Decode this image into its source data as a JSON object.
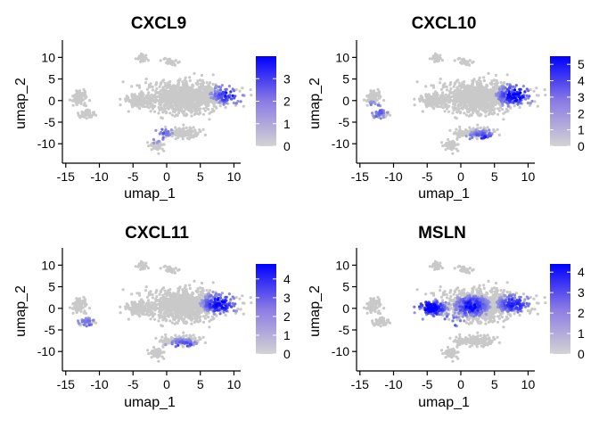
{
  "chart_data": [
    {
      "type": "scatter",
      "title": "CXCL9",
      "xlabel": "umap_1",
      "ylabel": "umap_2",
      "xlim": [
        -15.5,
        11
      ],
      "ylim": [
        -14.5,
        14
      ],
      "xticks": [
        "-15",
        "-10",
        "-5",
        "0",
        "5",
        "10"
      ],
      "xtick_values": [
        -15,
        -10,
        -5,
        0,
        5,
        10
      ],
      "yticks": [
        "10",
        "5",
        "0",
        "-5",
        "-10"
      ],
      "ytick_values": [
        10,
        5,
        0,
        -5,
        -10
      ],
      "legend": {
        "position": "right",
        "min": 0,
        "max": 4,
        "ticks": [
          "3",
          "2",
          "1",
          "0"
        ],
        "tick_values": [
          3,
          2,
          1,
          0
        ],
        "colors": [
          "#d3d3d3",
          "#0000ff"
        ]
      },
      "expression_hotspots": [
        {
          "x": 9.2,
          "y": 1.3,
          "intensity": 0.7
        },
        {
          "x": -1.5,
          "y": -7.5,
          "intensity": 0.5
        }
      ]
    },
    {
      "type": "scatter",
      "title": "CXCL10",
      "xlabel": "umap_1",
      "ylabel": "umap_2",
      "xlim": [
        -15.5,
        11
      ],
      "ylim": [
        -14.5,
        14
      ],
      "xticks": [
        "-15",
        "-10",
        "-5",
        "0",
        "5",
        "10"
      ],
      "xtick_values": [
        -15,
        -10,
        -5,
        0,
        5,
        10
      ],
      "yticks": [
        "10",
        "5",
        "0",
        "-5",
        "-10"
      ],
      "ytick_values": [
        10,
        5,
        0,
        -5,
        -10
      ],
      "legend": {
        "position": "right",
        "min": 0,
        "max": 5.5,
        "ticks": [
          "5",
          "4",
          "3",
          "2",
          "1",
          "0"
        ],
        "tick_values": [
          5,
          4,
          3,
          2,
          1,
          0
        ],
        "colors": [
          "#d3d3d3",
          "#0000ff"
        ]
      },
      "expression_hotspots": [
        {
          "x": 8.2,
          "y": 1.2,
          "intensity": 0.9
        },
        {
          "x": 3.5,
          "y": -9.5,
          "intensity": 0.8
        },
        {
          "x": -12.8,
          "y": -2.5,
          "intensity": 0.5
        }
      ]
    },
    {
      "type": "scatter",
      "title": "CXCL11",
      "xlabel": "umap_1",
      "ylabel": "umap_2",
      "xlim": [
        -15.5,
        11
      ],
      "ylim": [
        -14.5,
        14
      ],
      "xticks": [
        "-15",
        "-10",
        "-5",
        "0",
        "5",
        "10"
      ],
      "xtick_values": [
        -15,
        -10,
        -5,
        0,
        5,
        10
      ],
      "yticks": [
        "10",
        "5",
        "0",
        "-5",
        "-10"
      ],
      "ytick_values": [
        10,
        5,
        0,
        -5,
        -10
      ],
      "legend": {
        "position": "right",
        "min": 0,
        "max": 4.8,
        "ticks": [
          "4",
          "3",
          "2",
          "1",
          "0"
        ],
        "tick_values": [
          4,
          3,
          2,
          1,
          0
        ],
        "colors": [
          "#d3d3d3",
          "#0000ff"
        ]
      },
      "expression_hotspots": [
        {
          "x": 8.0,
          "y": 1.0,
          "intensity": 0.85
        },
        {
          "x": 2.5,
          "y": -9.8,
          "intensity": 0.8
        },
        {
          "x": -11.5,
          "y": -3.8,
          "intensity": 0.4
        }
      ]
    },
    {
      "type": "scatter",
      "title": "MSLN",
      "xlabel": "umap_1",
      "ylabel": "umap_2",
      "xlim": [
        -15.5,
        11
      ],
      "ylim": [
        -14.5,
        14
      ],
      "xticks": [
        "-15",
        "-10",
        "-5",
        "0",
        "5",
        "10"
      ],
      "xtick_values": [
        -15,
        -10,
        -5,
        0,
        5,
        10
      ],
      "yticks": [
        "10",
        "5",
        "0",
        "-5",
        "-10"
      ],
      "ytick_values": [
        10,
        5,
        0,
        -5,
        -10
      ],
      "legend": {
        "position": "right",
        "min": 0,
        "max": 4.4,
        "ticks": [
          "4",
          "3",
          "2",
          "1",
          "0"
        ],
        "tick_values": [
          4,
          3,
          2,
          1,
          0
        ],
        "colors": [
          "#d3d3d3",
          "#0000ff"
        ]
      },
      "expression_hotspots": [
        {
          "x": 1.5,
          "y": 0.5,
          "intensity": 0.75
        },
        {
          "x": -4.5,
          "y": 0.0,
          "intensity": 0.85
        },
        {
          "x": 8.0,
          "y": 1.0,
          "intensity": 0.7
        },
        {
          "x": -2.0,
          "y": -3.5,
          "intensity": 0.6
        }
      ]
    }
  ],
  "clusters": [
    {
      "x": 3.5,
      "y": 0.8,
      "sx": 5.6,
      "sy": 3.4,
      "n": 1100,
      "kind": "main"
    },
    {
      "x": -4.0,
      "y": 0.0,
      "sx": 1.9,
      "sy": 1.3,
      "n": 180,
      "kind": "strip"
    },
    {
      "x": -13.0,
      "y": 0.5,
      "sx": 0.9,
      "sy": 1.5,
      "n": 90,
      "kind": "left"
    },
    {
      "x": -12.0,
      "y": -3.0,
      "sx": 1.1,
      "sy": 0.8,
      "n": 60,
      "kind": "left"
    },
    {
      "x": 2.0,
      "y": -7.5,
      "sx": 2.6,
      "sy": 1.0,
      "n": 200,
      "kind": "lower"
    },
    {
      "x": -1.5,
      "y": -10.5,
      "sx": 0.8,
      "sy": 1.1,
      "n": 70,
      "kind": "lower"
    },
    {
      "x": -3.8,
      "y": 9.7,
      "sx": 0.6,
      "sy": 0.9,
      "n": 30,
      "kind": "top"
    },
    {
      "x": 0.5,
      "y": 9.0,
      "sx": 0.9,
      "sy": 0.6,
      "n": 40,
      "kind": "top"
    }
  ]
}
